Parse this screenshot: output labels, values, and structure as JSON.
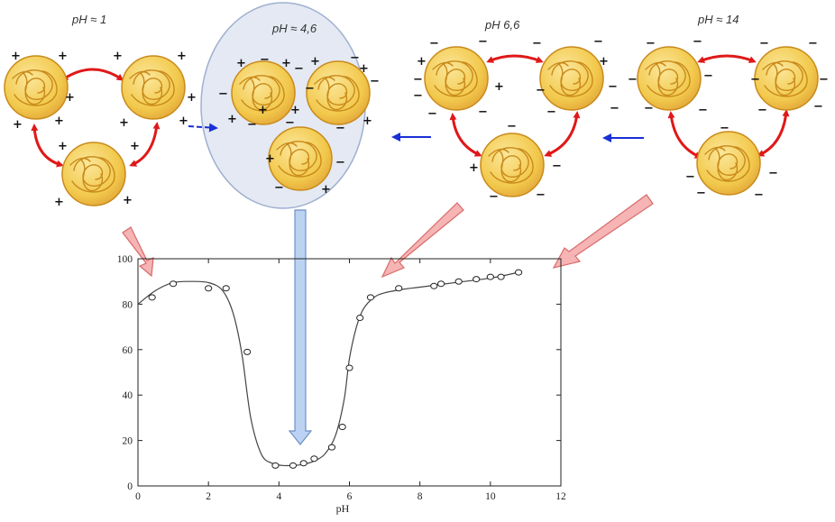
{
  "panels": [
    {
      "label": "pH ≈ 1",
      "signs": "+"
    },
    {
      "label": "pH ≈ 4,6",
      "signs": "mixed"
    },
    {
      "label": "pH 6,6",
      "signs": "mostly-minus"
    },
    {
      "label": "pH ≈ 14",
      "signs": "-"
    }
  ],
  "colors": {
    "protein_fill": "#f2c94c",
    "protein_stroke": "#c98a1a",
    "red_arrow": "#e01818",
    "blue_arrow": "#1a2fd6",
    "bubble_fill": "#e4e9f3",
    "bubble_stroke": "#9fb0cf",
    "pink_arrow": "#f6a9a9",
    "blue_down_arrow": "#b9d0f1"
  },
  "chart_data": {
    "type": "scatter",
    "xlabel": "pH",
    "ylabel": "",
    "xlim": [
      0,
      12
    ],
    "ylim": [
      0,
      100
    ],
    "x_ticks": [
      "0",
      "2",
      "4",
      "6",
      "8",
      "10",
      "12"
    ],
    "y_ticks": [
      "0",
      "20",
      "40",
      "60",
      "80",
      "100"
    ],
    "grid": false,
    "points": {
      "x": [
        0.4,
        1.0,
        2.0,
        2.5,
        3.1,
        3.9,
        4.4,
        4.7,
        5.0,
        5.5,
        5.8,
        6.0,
        6.3,
        6.6,
        7.4,
        8.4,
        8.6,
        9.1,
        9.6,
        10.0,
        10.3,
        10.8
      ],
      "y": [
        83,
        89,
        87,
        87,
        59,
        9,
        9,
        10,
        12,
        17,
        26,
        52,
        74,
        83,
        87,
        88,
        89,
        90,
        91,
        92,
        92,
        94
      ]
    },
    "curve": {
      "x": [
        0.0,
        0.5,
        1.0,
        1.5,
        2.0,
        2.4,
        2.7,
        2.95,
        3.2,
        3.5,
        3.8,
        4.1,
        4.4,
        4.7,
        5.0,
        5.3,
        5.6,
        5.85,
        6.0,
        6.2,
        6.4,
        6.7,
        7.0,
        7.5,
        8.0,
        9.0,
        10.0,
        10.8
      ],
      "y": [
        80,
        86,
        89.5,
        90,
        89.5,
        86,
        76,
        58,
        30,
        14,
        10,
        9,
        9,
        9.5,
        11,
        14,
        22,
        38,
        56,
        70,
        78,
        83,
        85,
        86.5,
        87.5,
        89.5,
        91.5,
        94
      ]
    }
  }
}
